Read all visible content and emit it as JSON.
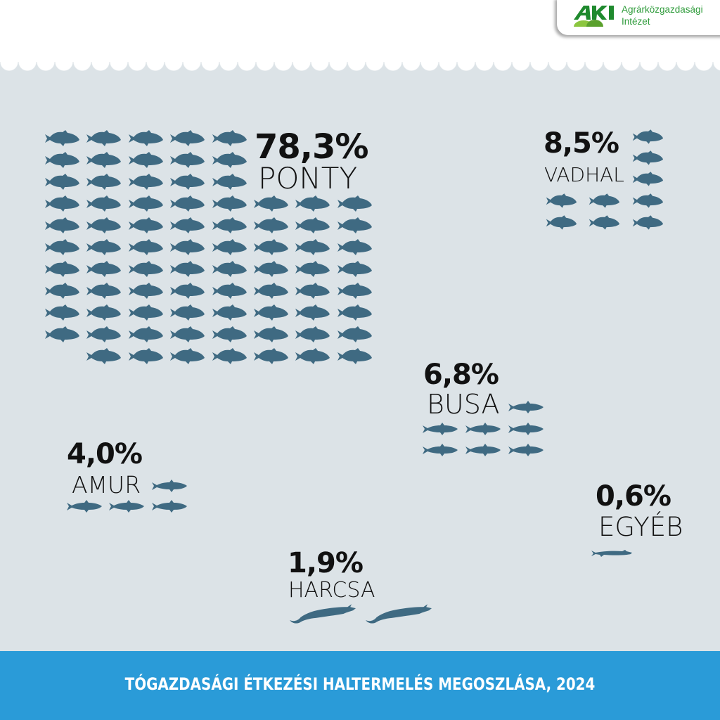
{
  "logo": {
    "mark": "AKI",
    "line1": "Agrárközgazdasági",
    "line2": "Intézet"
  },
  "footer": {
    "title": "TÓGAZDASÁGI ÉTKEZÉSI HALTERMELÉS MEGOSZLÁSA, 2024"
  },
  "colors": {
    "background": "#dce3e7",
    "fish": "#3f6a82",
    "footer": "#2a9bd8",
    "logo_green": "#2e9b3a"
  },
  "chart_data": {
    "type": "pictogram",
    "title": "TÓGAZDASÁGI ÉTKEZÉSI HALTERMELÉS MEGOSZLÁSA, 2024",
    "unit": "%",
    "categories": [
      {
        "name": "PONTY",
        "label": "78,3%",
        "value": 78.3,
        "icons": 78,
        "icon": "carp-icon"
      },
      {
        "name": "VADHAL",
        "label": "8,5%",
        "value": 8.5,
        "icons": 9,
        "icon": "carp-icon"
      },
      {
        "name": "BUSA",
        "label": "6,8%",
        "value": 6.8,
        "icons": 7,
        "icon": "slim-fish-icon"
      },
      {
        "name": "AMUR",
        "label": "4,0%",
        "value": 4.0,
        "icons": 4,
        "icon": "slim-fish-icon"
      },
      {
        "name": "HARCSA",
        "label": "1,9%",
        "value": 1.9,
        "icons": 2,
        "icon": "catfish-icon"
      },
      {
        "name": "EGYÉB",
        "label": "0,6%",
        "value": 0.6,
        "icons": 1,
        "icon": "pike-icon"
      }
    ]
  }
}
